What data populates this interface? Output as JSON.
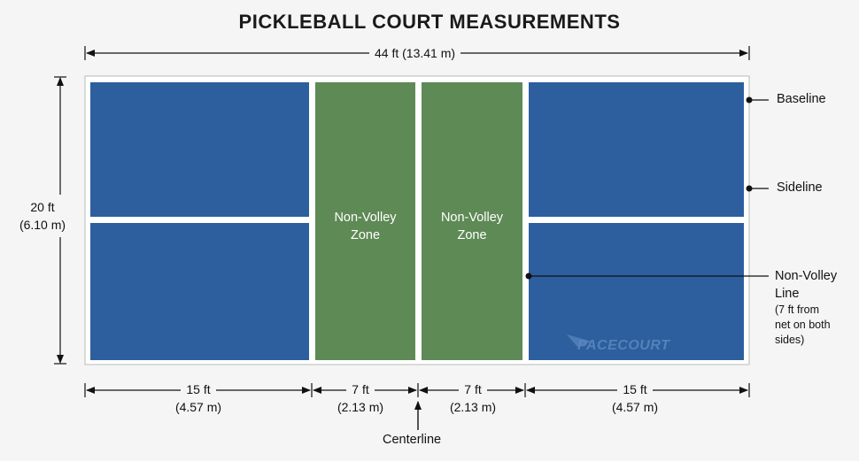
{
  "title": "PICKLEBALL COURT MEASUREMENTS",
  "dimensions": {
    "total_length": "44 ft (13.41 m)",
    "width_ft": "20 ft",
    "width_m": "(6.10 m)",
    "sections": [
      {
        "ft": "15 ft",
        "m": "(4.57 m)"
      },
      {
        "ft": "7 ft",
        "m": "(2.13 m)"
      },
      {
        "ft": "7 ft",
        "m": "(2.13 m)"
      },
      {
        "ft": "15 ft",
        "m": "(4.57 m)"
      }
    ]
  },
  "zones": {
    "non_volley_left": {
      "line1": "Non-Volley",
      "line2": "Zone"
    },
    "non_volley_right": {
      "line1": "Non-Volley",
      "line2": "Zone"
    }
  },
  "callouts": {
    "baseline": "Baseline",
    "sideline": "Sideline",
    "nvl_line1": "Non-Volley",
    "nvl_line2": "Line",
    "nvl_note1": "(7 ft from",
    "nvl_note2": "net on both",
    "nvl_note3": "sides)",
    "centerline": "Centerline"
  },
  "watermark": "PACECOURT",
  "colors": {
    "court_blue": "#2d5f9e",
    "kitchen_green": "#5e8a55",
    "line_white": "#ffffff",
    "background": "#f4f5f4"
  }
}
